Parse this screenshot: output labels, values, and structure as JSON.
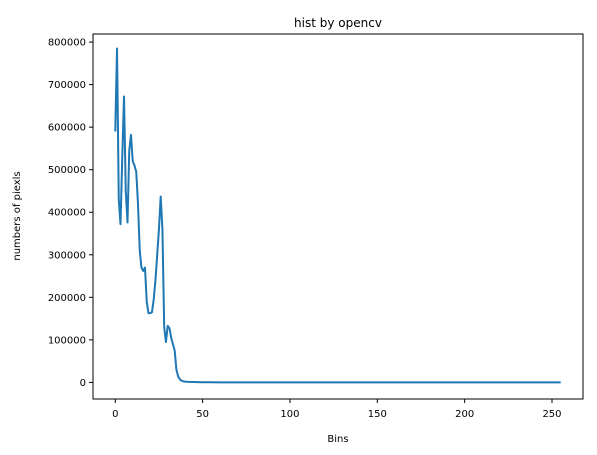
{
  "chart_data": {
    "type": "line",
    "title": "hist by opencv",
    "xlabel": "Bins",
    "ylabel": "numbers of piexls",
    "xlim": [
      -12.75,
      267.75
    ],
    "ylim": [
      -39000,
      819000
    ],
    "xticks": [
      0,
      50,
      100,
      150,
      200,
      250
    ],
    "xtick_labels": [
      "0",
      "50",
      "100",
      "150",
      "200",
      "250"
    ],
    "yticks": [
      0,
      100000,
      200000,
      300000,
      400000,
      500000,
      600000,
      700000,
      800000
    ],
    "ytick_labels": [
      "0",
      "100000",
      "200000",
      "300000",
      "400000",
      "500000",
      "600000",
      "700000",
      "800000"
    ],
    "grid": false,
    "series": [
      {
        "color": "#1f77b4",
        "x": [
          0,
          1,
          2,
          3,
          4,
          5,
          6,
          7,
          8,
          9,
          10,
          11,
          12,
          13,
          14,
          15,
          16,
          17,
          18,
          19,
          20,
          21,
          22,
          23,
          24,
          25,
          26,
          27,
          28,
          29,
          30,
          31,
          32,
          33,
          34,
          35,
          36,
          37,
          38,
          39,
          40,
          42,
          45,
          50,
          55,
          60,
          80,
          100,
          150,
          200,
          255
        ],
        "y": [
          590000,
          785000,
          430000,
          372000,
          530000,
          672000,
          450000,
          376000,
          545000,
          582000,
          520000,
          510000,
          495000,
          420000,
          310000,
          270000,
          262000,
          270000,
          190000,
          163000,
          163000,
          165000,
          195000,
          240000,
          300000,
          360000,
          437000,
          360000,
          130000,
          95000,
          133000,
          128000,
          105000,
          90000,
          75000,
          30000,
          14000,
          7000,
          4000,
          2500,
          1800,
          1200,
          900,
          500,
          300,
          100,
          0,
          0,
          0,
          0,
          0
        ]
      }
    ]
  }
}
